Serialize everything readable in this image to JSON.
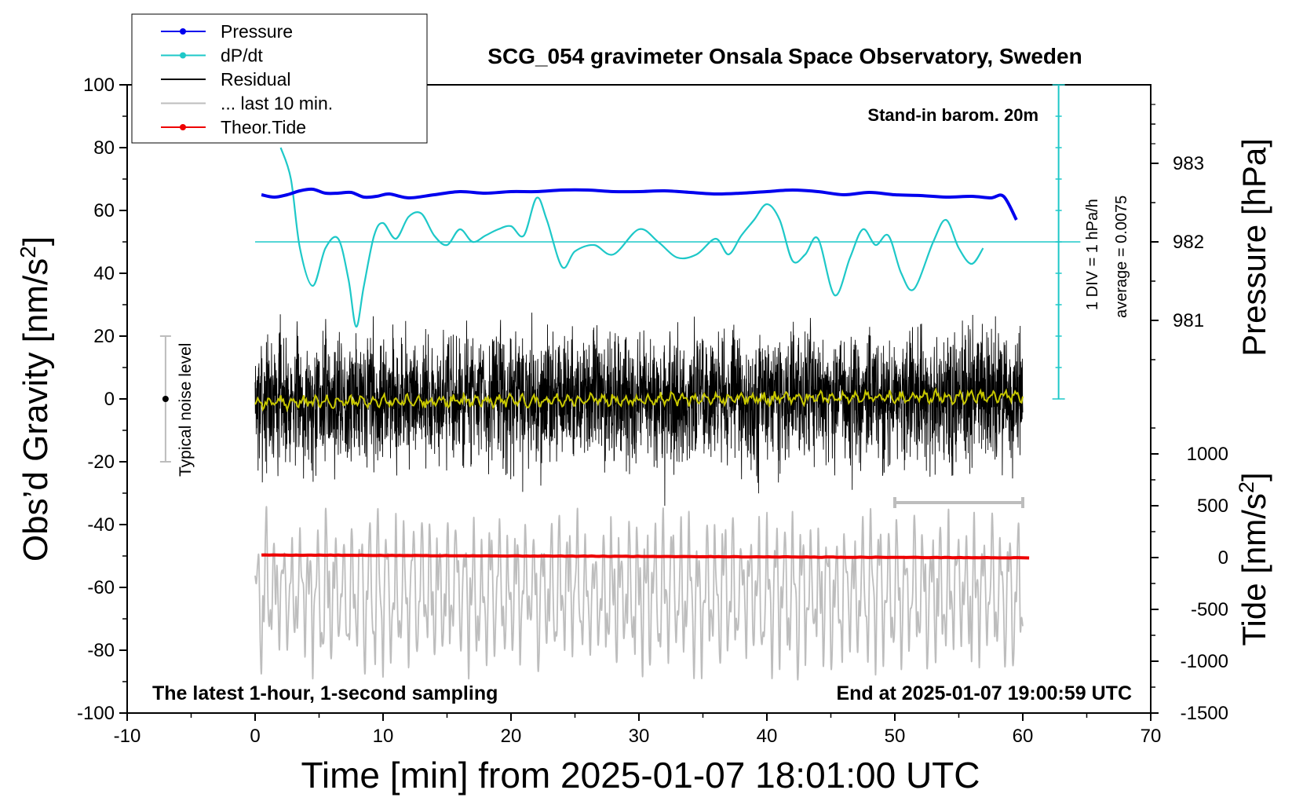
{
  "chart_data": {
    "type": "line",
    "title": "SCG_054 gravimeter Onsala Space Observatory, Sweden",
    "xlabel": "Time [min] from 2025-01-07 18:01:00 UTC",
    "ylabel_left_main": "Obs’d Gravity [nm/s",
    "ylabel_left_sup": "2",
    "ylabel_left_end": "]",
    "ylabel_right_top": "Pressure [hPa]",
    "ylabel_right_bottom_main": "Tide [nm/s",
    "ylabel_right_bottom_sup": "2",
    "ylabel_right_bottom_end": "]",
    "xlim": [
      -10,
      70
    ],
    "ylim": [
      -100,
      100
    ],
    "x_ticks": [
      "-10",
      "0",
      "10",
      "20",
      "30",
      "40",
      "50",
      "60",
      "70"
    ],
    "y_ticks": [
      "100",
      "80",
      "60",
      "40",
      "20",
      "0",
      "-20",
      "-40",
      "-60",
      "-80",
      "-100"
    ],
    "pressure_axis": {
      "ticks": [
        "983",
        "982",
        "981"
      ],
      "values": [
        983,
        982,
        981
      ],
      "lim": [
        980,
        984
      ]
    },
    "tide_axis": {
      "ticks": [
        "1000",
        "500",
        "0",
        "-500",
        "-1000",
        "-1500"
      ],
      "values": [
        1000,
        500,
        0,
        -500,
        -1000,
        -1500
      ],
      "lim": [
        -1500,
        1500
      ]
    },
    "legend": {
      "position": "top-left",
      "entries": [
        {
          "label": "Pressure",
          "color": "#0000ee",
          "marker": true
        },
        {
          "label": "dP/dt",
          "color": "#1ec8c8",
          "marker": true
        },
        {
          "label": "Residual",
          "color": "#000000",
          "marker": false
        },
        {
          "label": "... last 10 min.",
          "color": "#bdbdbd",
          "marker": false
        },
        {
          "label": "Theor.Tide",
          "color": "#ee0000",
          "marker": true
        }
      ]
    },
    "annotations": {
      "barom": "Stand-in barom. 20m",
      "div_label": "1 DIV = 1 hPa/h",
      "average_label": "average = 0.0075",
      "noise_label": "Typical noise level",
      "bottom_left": "The latest 1-hour, 1-second sampling",
      "bottom_right": "End at 2025-01-07 19:00:59 UTC"
    },
    "series": [
      {
        "name": "Pressure",
        "axis": "pressure_hPa",
        "color": "#0000ee",
        "x": [
          0.5,
          1.5,
          2.5,
          3.5,
          4.5,
          5.5,
          6.5,
          7.5,
          8.5,
          9.5,
          10.5,
          12,
          14,
          16,
          18,
          20,
          22,
          24,
          26,
          28,
          30,
          32,
          34,
          36,
          38,
          40,
          42,
          44,
          46,
          48,
          50,
          52,
          54,
          56,
          57.5,
          58.5,
          59.5
        ],
        "y": [
          982.6,
          982.57,
          982.6,
          982.65,
          982.67,
          982.62,
          982.62,
          982.63,
          982.57,
          982.58,
          982.61,
          982.56,
          982.6,
          982.64,
          982.62,
          982.64,
          982.64,
          982.66,
          982.66,
          982.64,
          982.64,
          982.65,
          982.63,
          982.61,
          982.62,
          982.64,
          982.66,
          982.64,
          982.6,
          982.63,
          982.6,
          982.59,
          982.57,
          982.58,
          982.56,
          982.58,
          982.28
        ]
      },
      {
        "name": "dP/dt",
        "axis": "hPa_per_h_div",
        "color": "#1ec8c8",
        "x": [
          2,
          2.8,
          3.5,
          4.5,
          5.5,
          6.5,
          7.3,
          7.9,
          8.5,
          9.3,
          10,
          11,
          12,
          13,
          14,
          15,
          16,
          17,
          18,
          19,
          20,
          21,
          22,
          22.8,
          24,
          25,
          26.5,
          28,
          30,
          31.5,
          33,
          34.5,
          36,
          37,
          38,
          39,
          40,
          41,
          42,
          43,
          44,
          45.3,
          46.5,
          47.5,
          48.5,
          49.5,
          50.5,
          51.5,
          53,
          54,
          55,
          56,
          56.9
        ],
        "y": [
          80,
          70,
          48,
          36,
          48,
          51,
          38,
          23,
          36,
          52,
          56,
          51,
          58,
          59,
          52,
          49,
          54,
          50,
          52,
          54,
          55,
          52,
          64,
          57,
          42,
          47,
          49,
          46,
          54,
          50,
          45,
          46,
          51,
          46,
          52,
          57,
          62,
          57,
          44,
          46,
          51,
          33,
          45,
          54,
          49,
          52,
          40,
          35,
          50,
          57,
          48,
          43,
          48
        ],
        "average": 0.0075
      },
      {
        "name": "Residual",
        "axis": "gravity_nm_s2",
        "color": "#000000",
        "x_range": [
          0,
          60
        ],
        "amplitude_range": [
          -34,
          28
        ]
      },
      {
        "name": "... last 10 min.",
        "axis": "gravity_nm_s2",
        "color": "#bdbdbd",
        "x_range": [
          0,
          60
        ],
        "y_range": [
          -89,
          -35
        ]
      },
      {
        "name": "Theor.Tide",
        "axis": "tide_nm_s2",
        "color": "#ee0000",
        "x": [
          0.5,
          60.5
        ],
        "y": [
          25,
          -3
        ]
      }
    ]
  }
}
